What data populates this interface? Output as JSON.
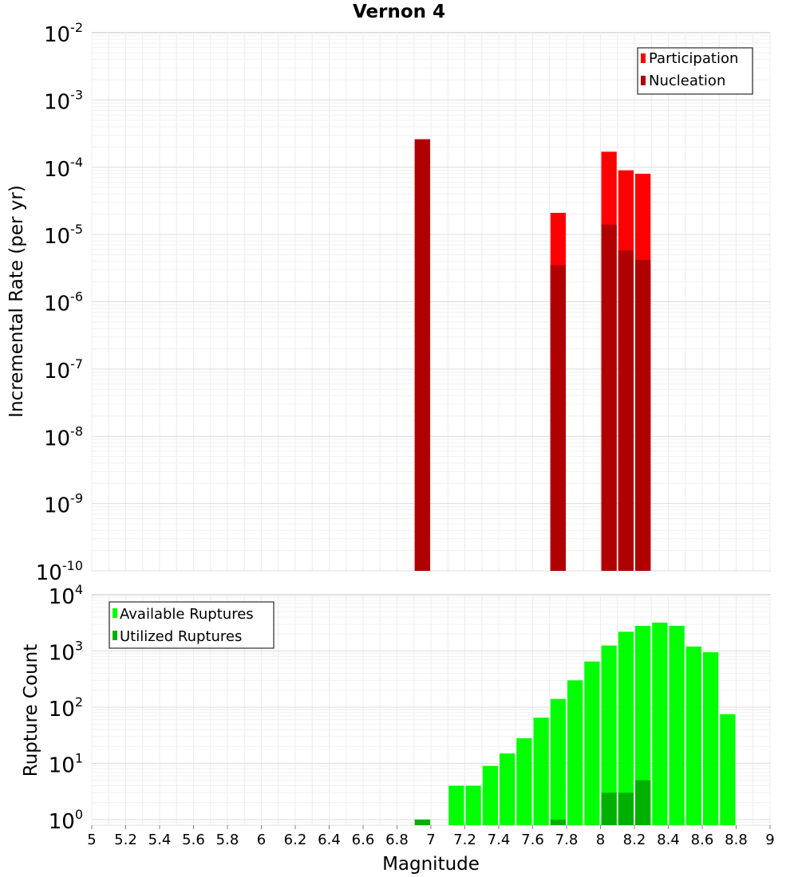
{
  "chart_data": [
    {
      "type": "bar",
      "title": "Vernon 4",
      "xlabel": "",
      "ylabel": "Incremental Rate (per yr)",
      "xlim": [
        5,
        9
      ],
      "ylim_log10": [
        -10,
        -2
      ],
      "y_scale": "log",
      "grid": true,
      "legend_position": "top-right",
      "y_ticks": [
        {
          "base": "10",
          "exp": "-2"
        },
        {
          "base": "10",
          "exp": "-3"
        },
        {
          "base": "10",
          "exp": "-4"
        },
        {
          "base": "10",
          "exp": "-5"
        },
        {
          "base": "10",
          "exp": "-6"
        },
        {
          "base": "10",
          "exp": "-7"
        },
        {
          "base": "10",
          "exp": "-8"
        },
        {
          "base": "10",
          "exp": "-9"
        },
        {
          "base": "10",
          "exp": "-10"
        }
      ],
      "series": [
        {
          "name": "Participation",
          "color": "#ff0000",
          "points": [
            [
              6.95,
              0.00026
            ],
            [
              7.75,
              2.1e-05
            ],
            [
              8.05,
              0.00017
            ],
            [
              8.15,
              9e-05
            ],
            [
              8.25,
              8e-05
            ]
          ]
        },
        {
          "name": "Nucleation",
          "color": "#b00000",
          "points": [
            [
              6.95,
              0.00026
            ],
            [
              7.75,
              3.5e-06
            ],
            [
              8.05,
              1.4e-05
            ],
            [
              8.15,
              5.8e-06
            ],
            [
              8.25,
              4.2e-06
            ]
          ]
        }
      ]
    },
    {
      "type": "bar",
      "title": "",
      "xlabel": "Magnitude",
      "ylabel": "Rupture Count",
      "xlim": [
        5,
        9
      ],
      "ylim_log10": [
        -0.1,
        4
      ],
      "y_scale": "log",
      "grid": true,
      "legend_position": "top-left",
      "y_ticks": [
        {
          "base": "10",
          "exp": "4"
        },
        {
          "base": "10",
          "exp": "3"
        },
        {
          "base": "10",
          "exp": "2"
        },
        {
          "base": "10",
          "exp": "1"
        },
        {
          "base": "10",
          "exp": "0"
        }
      ],
      "x_ticks": [
        "5",
        "5.2",
        "5.4",
        "5.6",
        "5.8",
        "6",
        "6.2",
        "6.4",
        "6.6",
        "6.8",
        "7",
        "7.2",
        "7.4",
        "7.6",
        "7.8",
        "8",
        "8.2",
        "8.4",
        "8.6",
        "8.8",
        "9"
      ],
      "series": [
        {
          "name": "Available Ruptures",
          "color": "#00ff00",
          "points": [
            [
              6.95,
              1
            ],
            [
              7.15,
              4
            ],
            [
              7.25,
              4
            ],
            [
              7.35,
              9
            ],
            [
              7.45,
              15
            ],
            [
              7.55,
              28
            ],
            [
              7.65,
              65
            ],
            [
              7.75,
              140
            ],
            [
              7.85,
              300
            ],
            [
              7.95,
              650
            ],
            [
              8.05,
              1250
            ],
            [
              8.15,
              2200
            ],
            [
              8.25,
              2800
            ],
            [
              8.35,
              3200
            ],
            [
              8.45,
              2800
            ],
            [
              8.55,
              1200
            ],
            [
              8.65,
              950
            ],
            [
              8.75,
              75
            ]
          ]
        },
        {
          "name": "Utilized Ruptures",
          "color": "#00b000",
          "points": [
            [
              6.95,
              1
            ],
            [
              7.75,
              1
            ],
            [
              8.05,
              3
            ],
            [
              8.15,
              3
            ],
            [
              8.25,
              5
            ]
          ]
        }
      ]
    }
  ]
}
